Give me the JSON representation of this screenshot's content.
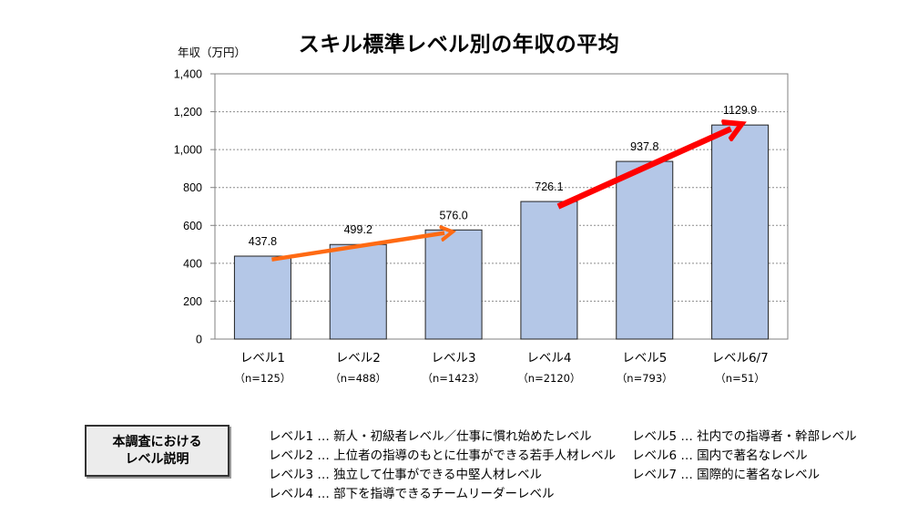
{
  "chart_data": {
    "type": "bar",
    "title": "スキル標準レベル別の年収の平均",
    "ylabel": "年収（万円）",
    "ylim": [
      0,
      1400
    ],
    "yticks": [
      "0",
      "200",
      "400",
      "600",
      "800",
      "1,000",
      "1,200",
      "1,400"
    ],
    "grid": true,
    "bar_color": "#b4c7e7",
    "categories": [
      "レベル1",
      "レベル2",
      "レベル3",
      "レベル4",
      "レベル5",
      "レベル6/7"
    ],
    "sample_sizes": [
      "（n=125）",
      "（n=488）",
      "（n=1423）",
      "（n=2120）",
      "（n=793）",
      "（n=51）"
    ],
    "values": [
      437.8,
      499.2,
      576.0,
      726.1,
      937.8,
      1129.9
    ],
    "value_labels": [
      "437.8",
      "499.2",
      "576.0",
      "726.1",
      "937.8",
      "1129.9"
    ],
    "arrows": [
      {
        "color": "#ff6a13",
        "from": {
          "category": "レベル1",
          "value": 420
        },
        "to": {
          "category": "レベル3",
          "value": 560
        }
      },
      {
        "color": "#ff0000",
        "from": {
          "category": "レベル4",
          "value": 700
        },
        "to": {
          "category": "レベル6/7",
          "value": 1110
        }
      }
    ]
  },
  "legend": {
    "box_line1": "本調査における",
    "box_line2": "レベル説明",
    "left": [
      "レベル1 … 新人・初級者レベル／仕事に慣れ始めたレベル",
      "レベル2 … 上位者の指導のもとに仕事ができる若手人材レベル",
      "レベル3 … 独立して仕事ができる中堅人材レベル",
      "レベル4 … 部下を指導できるチームリーダーレベル"
    ],
    "right": [
      "レベル5 … 社内での指導者・幹部レベル",
      "レベル6 … 国内で著名なレベル",
      "レベル7 … 国際的に著名なレベル"
    ]
  }
}
